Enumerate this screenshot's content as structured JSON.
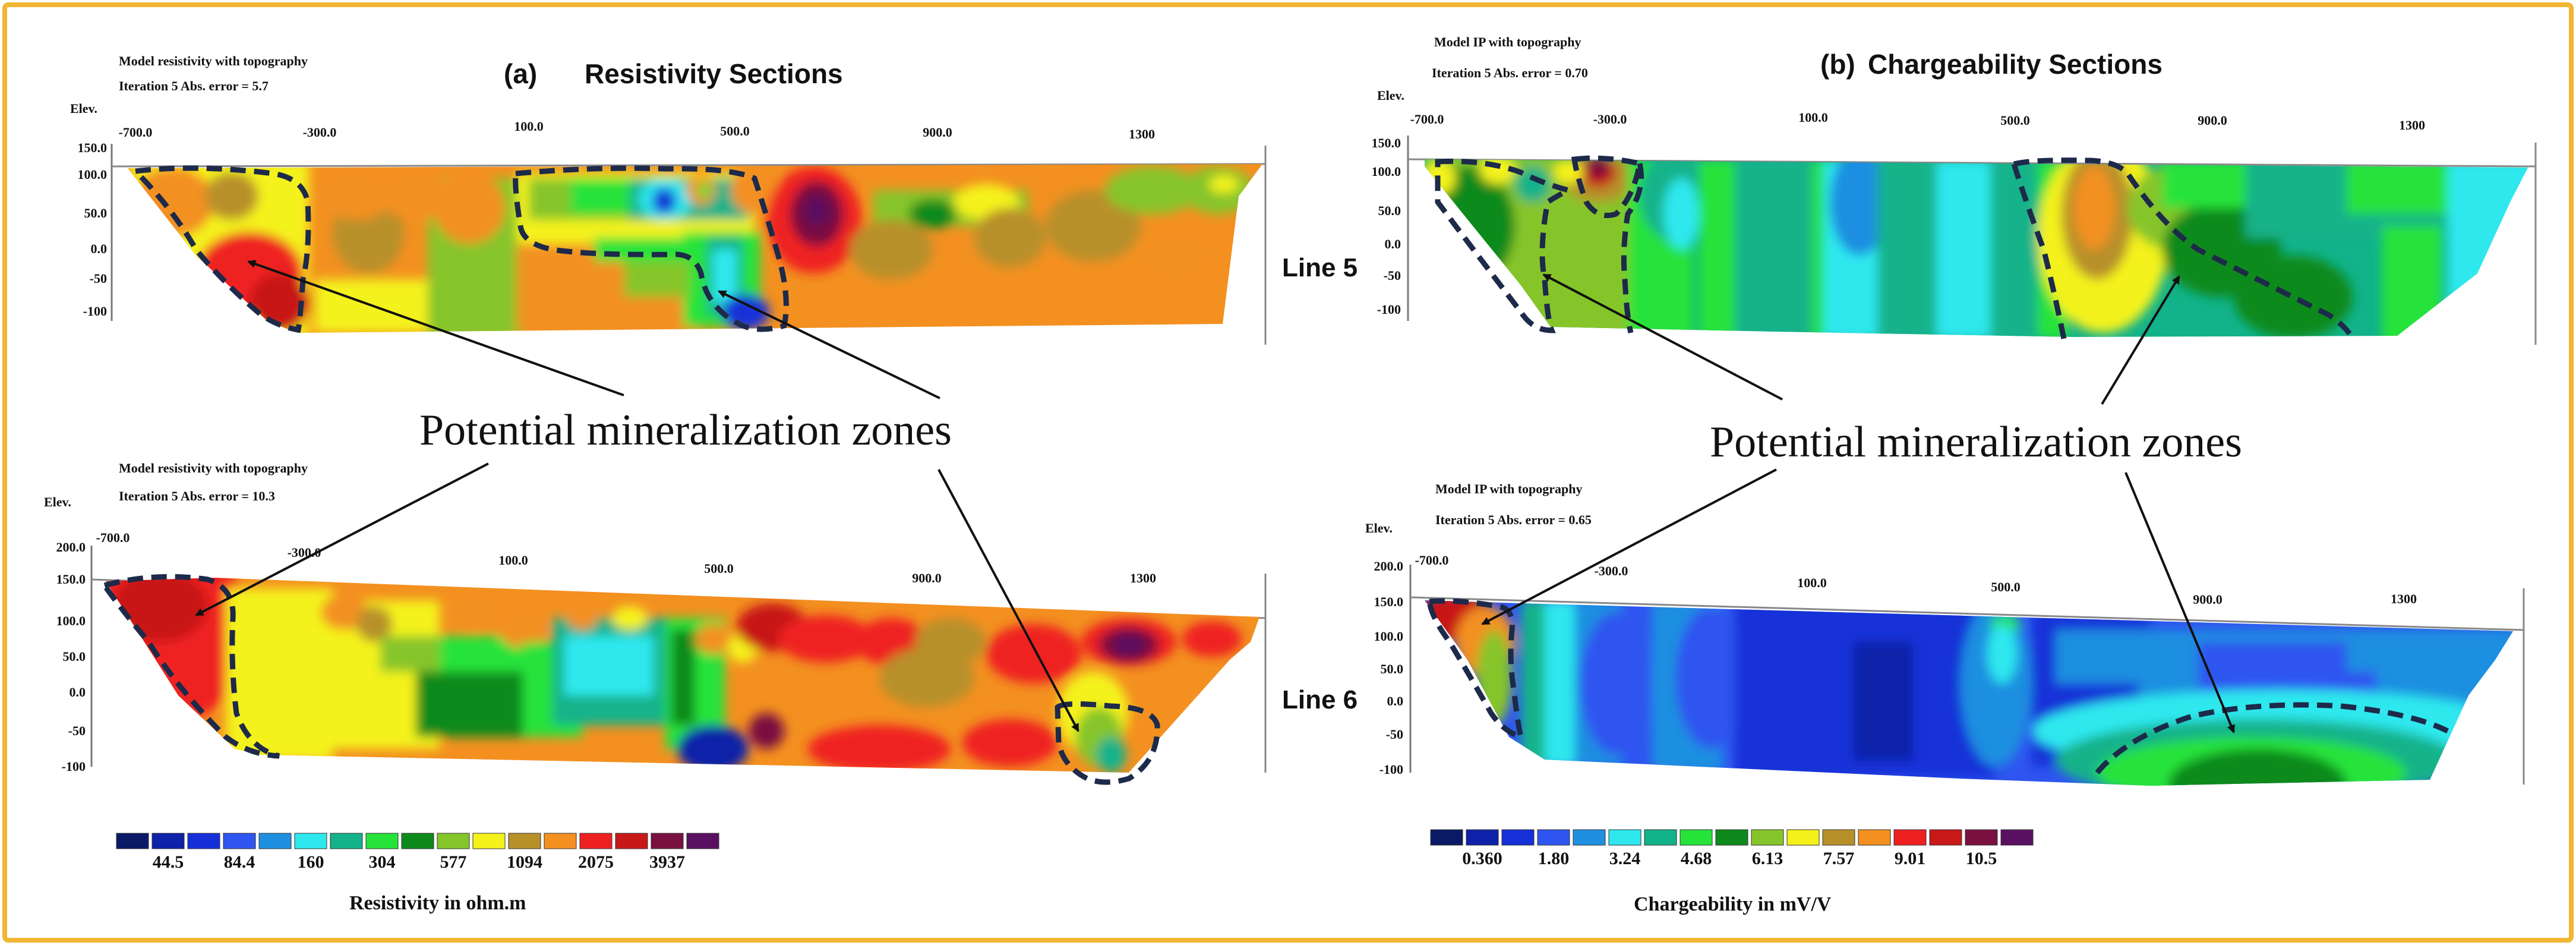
{
  "panels": [
    {
      "id": "a",
      "heading_letter": "(a)",
      "heading_text": "Resistivity Sections",
      "colorbar_values": [
        "44.5",
        "84.4",
        "160",
        "304",
        "577",
        "1094",
        "2075",
        "3937"
      ],
      "colorbar_title": "Resistivity in ohm.m",
      "sections": [
        {
          "model_title": "Model resistivity with topography",
          "iteration": "Iteration 5 Abs. error = 5.7",
          "elev_label": "Elev.",
          "x_ticks": [
            "-700.0",
            "-300.0",
            "100.0",
            "500.0",
            "900.0",
            "1300"
          ],
          "y_ticks": [
            "150.0",
            "100.0",
            "50.0",
            "0.0",
            "-50",
            "-100"
          ]
        },
        {
          "model_title": "Model resistivity with topography",
          "iteration": "Iteration 5 Abs. error = 10.3",
          "elev_label": "Elev.",
          "x_ticks": [
            "-700.0",
            "-300.0",
            "100.0",
            "500.0",
            "900.0",
            "1300"
          ],
          "y_ticks": [
            "200.0",
            "150.0",
            "100.0",
            "50.0",
            "0.0",
            "-50",
            "-100"
          ]
        }
      ]
    },
    {
      "id": "b",
      "heading_letter": "(b)",
      "heading_text": "Chargeability Sections",
      "colorbar_values": [
        "0.360",
        "1.80",
        "3.24",
        "4.68",
        "6.13",
        "7.57",
        "9.01",
        "10.5"
      ],
      "colorbar_title": "Chargeability in mV/V",
      "sections": [
        {
          "model_title": "Model IP with topography",
          "iteration": "Iteration 5 Abs. error = 0.70",
          "elev_label": "Elev.",
          "x_ticks": [
            "-700.0",
            "-300.0",
            "100.0",
            "500.0",
            "900.0",
            "1300"
          ],
          "y_ticks": [
            "150.0",
            "100.0",
            "50.0",
            "0.0",
            "-50",
            "-100"
          ]
        },
        {
          "model_title": "Model IP with topography",
          "iteration": "Iteration 5 Abs. error = 0.65",
          "elev_label": "Elev.",
          "x_ticks": [
            "-700.0",
            "-300.0",
            "100.0",
            "500.0",
            "900.0",
            "1300"
          ],
          "y_ticks": [
            "200.0",
            "150.0",
            "100.0",
            "50.0",
            "0.0",
            "-50",
            "-100"
          ]
        }
      ]
    }
  ],
  "line_labels": [
    "Line 5",
    "Line 6"
  ],
  "annotation_text": "Potential mineralization zones",
  "colors": {
    "frame": "#f2b632",
    "zone_outline": "#1d2a4a",
    "scale": [
      "#0b1a66",
      "#0d22a8",
      "#1530d8",
      "#2f55f0",
      "#1f8fe0",
      "#2ee8ee",
      "#12b28a",
      "#26e33a",
      "#0e8a1c",
      "#86c52a",
      "#f4f21a",
      "#b8902a",
      "#f39020",
      "#ef2020",
      "#c81818",
      "#7a1040",
      "#5a1060"
    ]
  },
  "chart_data": {
    "type": "heatmap",
    "panels": [
      {
        "title": "Resistivity Sections",
        "legend_title": "Resistivity in ohm.m",
        "legend_values": [
          44.5,
          84.4,
          160,
          304,
          577,
          1094,
          2075,
          3937
        ],
        "sections": [
          {
            "line": "Line 5",
            "x_ticks": [
              -700,
              -300,
              100,
              500,
              900,
              1300
            ],
            "y_ticks": [
              150,
              100,
              50,
              0,
              -50,
              -100
            ],
            "abs_error": 5.7
          },
          {
            "line": "Line 6",
            "x_ticks": [
              -700,
              -300,
              100,
              500,
              900,
              1300
            ],
            "y_ticks": [
              200,
              150,
              100,
              50,
              0,
              -50,
              -100
            ],
            "abs_error": 10.3
          }
        ]
      },
      {
        "title": "Chargeability Sections",
        "legend_title": "Chargeability in mV/V",
        "legend_values": [
          0.36,
          1.8,
          3.24,
          4.68,
          6.13,
          7.57,
          9.01,
          10.5
        ],
        "sections": [
          {
            "line": "Line 5",
            "x_ticks": [
              -700,
              -300,
              100,
              500,
              900,
              1300
            ],
            "y_ticks": [
              150,
              100,
              50,
              0,
              -50,
              -100
            ],
            "abs_error": 0.7
          },
          {
            "line": "Line 6",
            "x_ticks": [
              -700,
              -300,
              100,
              500,
              900,
              1300
            ],
            "y_ticks": [
              200,
              150,
              100,
              50,
              0,
              -50,
              -100
            ],
            "abs_error": 0.65
          }
        ]
      }
    ]
  }
}
